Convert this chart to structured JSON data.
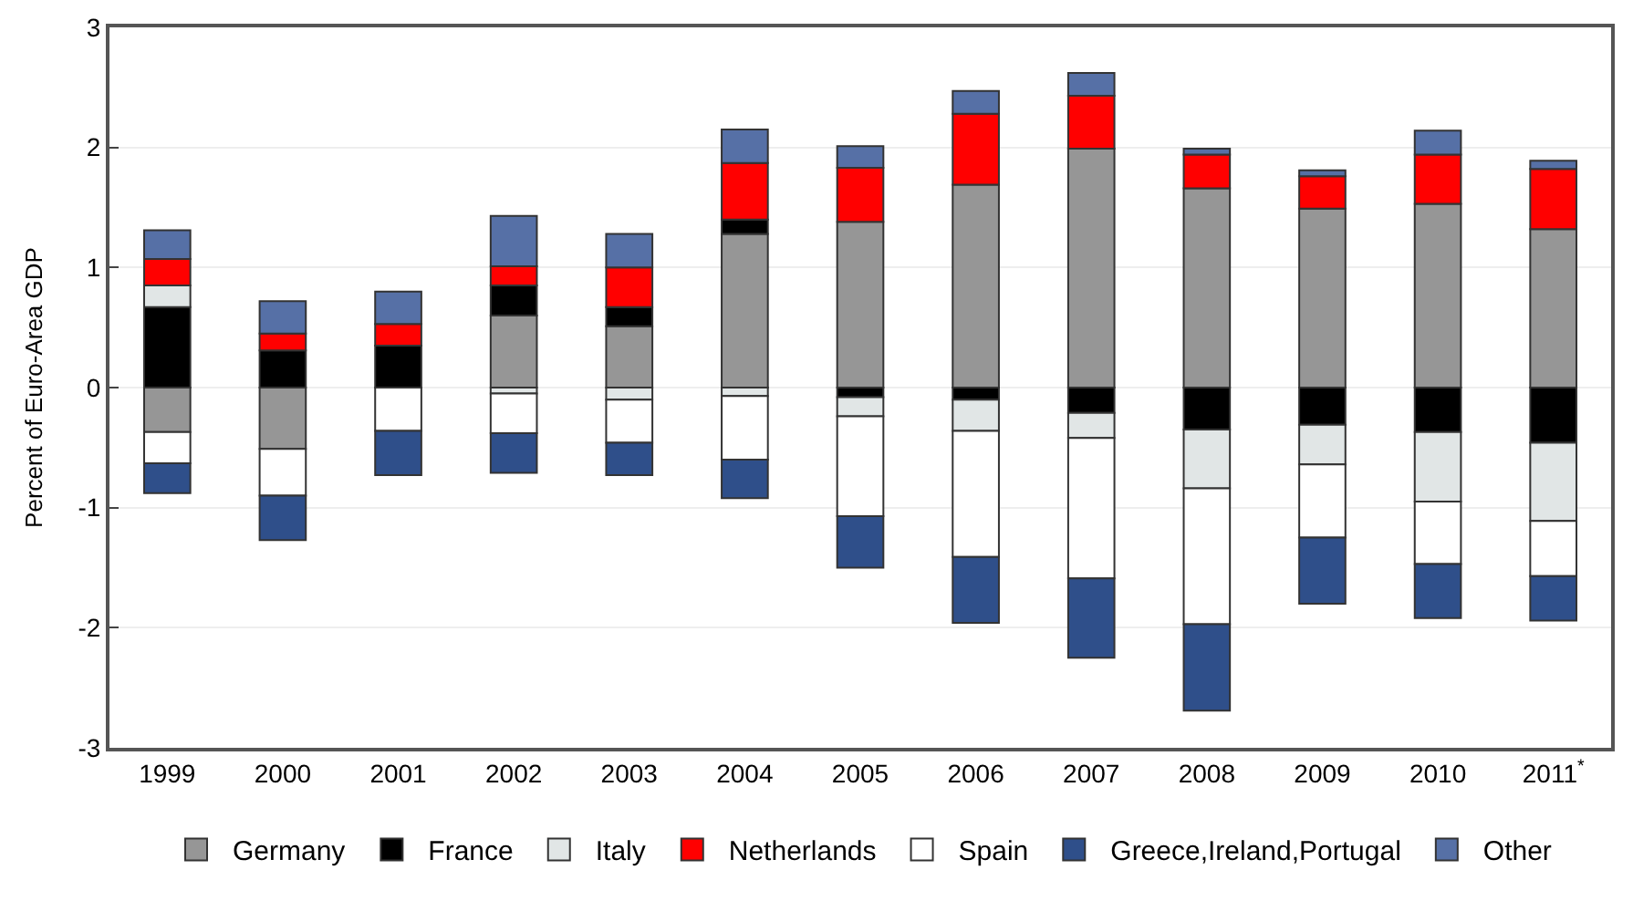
{
  "chart_data": {
    "type": "bar",
    "stacked": true,
    "ylabel": "Percent of Euro-Area GDP",
    "categories": [
      "1999",
      "2000",
      "2001",
      "2002",
      "2003",
      "2004",
      "2005",
      "2006",
      "2007",
      "2008",
      "2009",
      "2010",
      "2011$^{*}$"
    ],
    "series": [
      {
        "name": "Germany",
        "color": "#969696",
        "values": [
          -0.37,
          -0.51,
          null,
          0.6,
          0.51,
          1.28,
          1.38,
          1.69,
          1.99,
          1.66,
          1.49,
          1.53,
          1.32
        ]
      },
      {
        "name": "France",
        "color": "#000000",
        "values": [
          0.67,
          0.31,
          0.35,
          0.25,
          0.16,
          0.12,
          -0.08,
          -0.1,
          -0.21,
          -0.35,
          -0.31,
          -0.37,
          -0.46
        ]
      },
      {
        "name": "Italy",
        "color": "#e1e6e6",
        "values": [
          0.18,
          null,
          null,
          -0.05,
          -0.1,
          -0.07,
          -0.16,
          -0.26,
          -0.21,
          -0.49,
          -0.33,
          -0.58,
          -0.65
        ]
      },
      {
        "name": "Netherlands",
        "color": "#ff0000",
        "values": [
          0.22,
          0.14,
          0.18,
          0.16,
          0.33,
          0.47,
          0.45,
          0.59,
          0.44,
          0.28,
          0.27,
          0.41,
          0.5
        ]
      },
      {
        "name": "Spain",
        "color": "#ffffff",
        "values": [
          -0.26,
          -0.39,
          -0.36,
          -0.33,
          -0.36,
          -0.53,
          -0.83,
          -1.05,
          -1.17,
          -1.13,
          -0.61,
          -0.52,
          -0.46
        ]
      },
      {
        "name": "Greece,Ireland,Portugal",
        "color": "#2f4f8a",
        "values": [
          -0.25,
          -0.37,
          -0.37,
          -0.33,
          -0.27,
          -0.32,
          -0.43,
          -0.55,
          -0.66,
          -0.72,
          -0.55,
          -0.45,
          -0.37
        ]
      },
      {
        "name": "Other",
        "color": "#5670a6",
        "values": [
          0.24,
          0.27,
          0.27,
          0.42,
          0.28,
          0.28,
          0.18,
          0.19,
          0.19,
          0.05,
          0.05,
          0.2,
          0.07
        ]
      }
    ],
    "ylim": [
      -3,
      3
    ],
    "yticks": [
      -3,
      -2,
      -1,
      0,
      1,
      2,
      3
    ],
    "grid": "y",
    "legend": "bottom"
  }
}
